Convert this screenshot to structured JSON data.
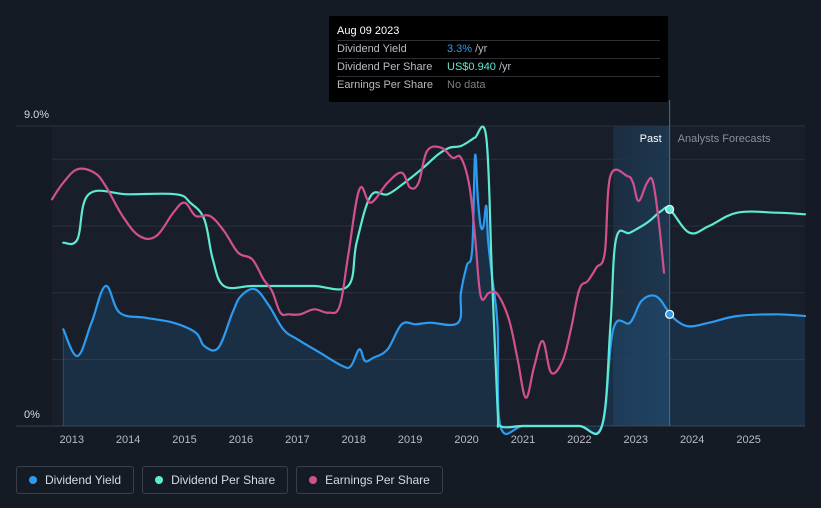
{
  "chart_data": {
    "type": "line",
    "title": "",
    "xlabel": "",
    "ylabel": "",
    "y_axis": {
      "top_label": "9.0%",
      "bottom_label": "0%",
      "ylim": [
        0,
        9.0
      ]
    },
    "x_ticks": [
      "2013",
      "2014",
      "2015",
      "2016",
      "2017",
      "2018",
      "2019",
      "2020",
      "2021",
      "2022",
      "2023",
      "2024",
      "2025"
    ],
    "xlim": [
      2012.65,
      2026.0
    ],
    "past_label": "Past",
    "forecast_label": "Analysts Forecasts",
    "forecast_start": 2022.6,
    "current_date": 2023.6,
    "tooltip": {
      "date": "Aug 09 2023",
      "rows": [
        {
          "label": "Dividend Yield",
          "value": "3.3%",
          "unit": "/yr"
        },
        {
          "label": "Dividend Per Share",
          "value": "US$0.940",
          "unit": "/yr"
        },
        {
          "label": "Earnings Per Share",
          "value": "No data",
          "unit": ""
        }
      ]
    },
    "series": [
      {
        "name": "Dividend Yield",
        "color": "#2d9bf0",
        "filled": true,
        "x": [
          2012.85,
          2013.1,
          2013.35,
          2013.6,
          2013.85,
          2014.3,
          2014.8,
          2015.2,
          2015.35,
          2015.6,
          2015.85,
          2016.0,
          2016.25,
          2016.5,
          2016.75,
          2017.0,
          2017.4,
          2017.8,
          2017.95,
          2018.1,
          2018.2,
          2018.35,
          2018.6,
          2018.85,
          2019.1,
          2019.35,
          2019.85,
          2019.9,
          2020.0,
          2020.1,
          2020.15,
          2020.2,
          2020.25,
          2020.3,
          2020.35,
          2020.38,
          2020.45,
          2020.55,
          2020.6,
          2021.0,
          2021.5,
          2022.0,
          2022.4,
          2022.6,
          2022.9,
          2023.1,
          2023.35,
          2023.55,
          2023.6,
          2023.9,
          2024.3,
          2024.8,
          2025.5,
          2026.0
        ],
        "y": [
          2.9,
          2.1,
          3.1,
          4.2,
          3.4,
          3.25,
          3.1,
          2.8,
          2.4,
          2.35,
          3.4,
          3.9,
          4.1,
          3.6,
          2.9,
          2.6,
          2.2,
          1.8,
          1.8,
          2.3,
          1.95,
          2.05,
          2.3,
          3.05,
          3.05,
          3.1,
          3.1,
          4.0,
          4.8,
          5.3,
          8.1,
          6.8,
          6.0,
          6.0,
          6.6,
          5.6,
          4.5,
          3.0,
          0.0,
          0.0,
          0.0,
          0.0,
          0.0,
          2.9,
          3.1,
          3.75,
          3.9,
          3.5,
          3.35,
          3.0,
          3.1,
          3.3,
          3.35,
          3.3
        ]
      },
      {
        "name": "Dividend Per Share",
        "color": "#5ee9d3",
        "filled": false,
        "x": [
          2012.85,
          2013.1,
          2013.3,
          2014.0,
          2014.85,
          2015.1,
          2015.35,
          2015.5,
          2015.7,
          2016.2,
          2016.8,
          2017.3,
          2017.9,
          2018.05,
          2018.3,
          2018.6,
          2018.9,
          2019.2,
          2019.5,
          2019.7,
          2019.9,
          2020.1,
          2020.15,
          2020.35,
          2020.45,
          2020.55,
          2020.6,
          2021.0,
          2021.5,
          2022.0,
          2022.4,
          2022.55,
          2022.65,
          2022.9,
          2023.2,
          2023.45,
          2023.6,
          2023.95,
          2024.3,
          2024.8,
          2025.5,
          2026.0
        ],
        "y": [
          5.5,
          5.6,
          6.95,
          6.95,
          6.95,
          6.7,
          6.2,
          5.0,
          4.2,
          4.2,
          4.2,
          4.2,
          4.2,
          5.5,
          6.9,
          6.95,
          7.3,
          7.7,
          8.15,
          8.35,
          8.4,
          8.6,
          8.65,
          8.65,
          4.5,
          0.5,
          0.0,
          0.0,
          0.0,
          0.0,
          0.0,
          3.0,
          5.6,
          5.8,
          6.1,
          6.45,
          6.5,
          5.8,
          6.0,
          6.4,
          6.4,
          6.35
        ]
      },
      {
        "name": "Earnings Per Share",
        "color": "#d1508e",
        "filled": false,
        "x": [
          2012.65,
          2012.85,
          2013.1,
          2013.4,
          2013.6,
          2013.9,
          2014.2,
          2014.5,
          2014.8,
          2015.0,
          2015.2,
          2015.45,
          2015.7,
          2015.95,
          2016.2,
          2016.4,
          2016.55,
          2016.7,
          2016.85,
          2017.05,
          2017.3,
          2017.55,
          2017.75,
          2017.9,
          2018.1,
          2018.3,
          2018.6,
          2018.85,
          2019.0,
          2019.15,
          2019.3,
          2019.55,
          2019.75,
          2019.9,
          2020.05,
          2020.15,
          2020.25,
          2020.4,
          2020.55,
          2020.75,
          2020.9,
          2021.05,
          2021.2,
          2021.35,
          2021.5,
          2021.7,
          2021.85,
          2022.0,
          2022.15,
          2022.3,
          2022.45,
          2022.55,
          2022.85,
          2022.95,
          2023.05,
          2023.2,
          2023.3,
          2023.4,
          2023.5
        ],
        "y": [
          6.8,
          7.3,
          7.7,
          7.6,
          7.2,
          6.3,
          5.7,
          5.7,
          6.4,
          6.7,
          6.3,
          6.3,
          5.85,
          5.2,
          5.0,
          4.4,
          4.05,
          3.4,
          3.35,
          3.35,
          3.5,
          3.4,
          3.6,
          5.1,
          7.1,
          6.7,
          7.3,
          7.6,
          7.15,
          7.3,
          8.25,
          8.35,
          8.05,
          8.05,
          7.2,
          5.7,
          3.9,
          4.0,
          3.95,
          3.2,
          2.05,
          0.85,
          1.8,
          2.55,
          1.6,
          1.95,
          2.9,
          4.1,
          4.35,
          4.75,
          5.2,
          7.5,
          7.5,
          7.3,
          6.75,
          7.3,
          7.35,
          6.25,
          4.6
        ]
      }
    ],
    "markers": [
      {
        "series": "Dividend Per Share",
        "x": 2023.6,
        "y": 6.5
      },
      {
        "series": "Dividend Yield",
        "x": 2023.6,
        "y": 3.35
      }
    ],
    "legend": [
      "Dividend Yield",
      "Dividend Per Share",
      "Earnings Per Share"
    ]
  }
}
